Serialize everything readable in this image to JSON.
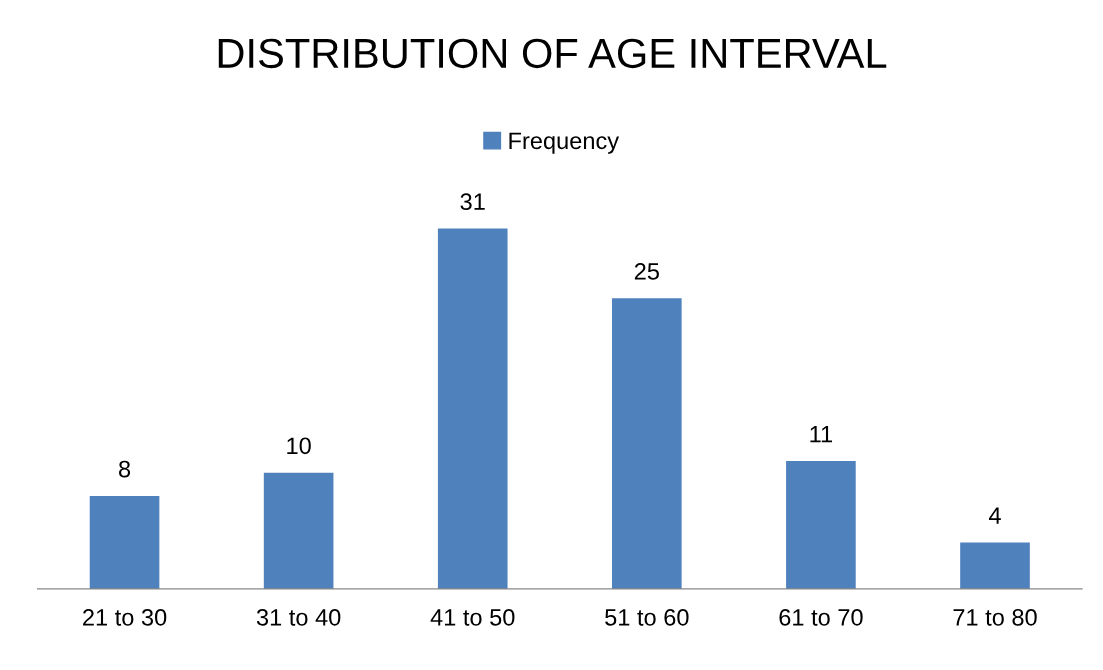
{
  "chart_data": {
    "type": "bar",
    "title": "DISTRIBUTION OF AGE INTERVAL",
    "categories": [
      "21 to 30",
      "31 to 40",
      "41 to 50",
      "51 to 60",
      "61 to 70",
      "71 to 80"
    ],
    "series": [
      {
        "name": "Frequency",
        "color": "#4f81bd",
        "values": [
          8,
          10,
          31,
          25,
          11,
          4
        ]
      }
    ],
    "data_labels": true,
    "legend": "top",
    "grid": false
  }
}
